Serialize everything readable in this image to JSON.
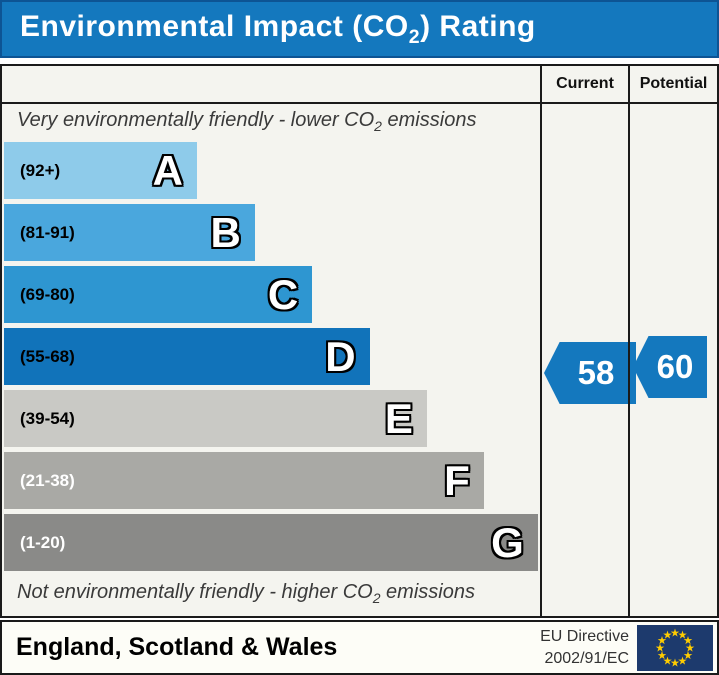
{
  "title": {
    "pre": "Environmental Impact (CO",
    "sub": "2",
    "post": ") Rating"
  },
  "columns": {
    "current": "Current",
    "potential": "Potential"
  },
  "top_label": {
    "pre": "Very environmentally friendly - lower CO",
    "sub": "2",
    "post": " emissions"
  },
  "bottom_label": {
    "pre": "Not environmentally friendly - higher CO",
    "sub": "2",
    "post": " emissions"
  },
  "chart_data": {
    "type": "bar",
    "title": "Environmental Impact (CO2) Rating",
    "bands": [
      {
        "letter": "A",
        "range": "(92+)",
        "min": 92,
        "max": 100,
        "width_pct": 36,
        "color": "#8ecbea",
        "text_color": "#000000"
      },
      {
        "letter": "B",
        "range": "(81-91)",
        "min": 81,
        "max": 91,
        "width_pct": 46.8,
        "color": "#4aa7dd",
        "text_color": "#000000"
      },
      {
        "letter": "C",
        "range": "(69-80)",
        "min": 69,
        "max": 80,
        "width_pct": 57.5,
        "color": "#2e96d1",
        "text_color": "#000000"
      },
      {
        "letter": "D",
        "range": "(55-68)",
        "min": 55,
        "max": 68,
        "width_pct": 68.2,
        "color": "#1173ba",
        "text_color": "#000000"
      },
      {
        "letter": "E",
        "range": "(39-54)",
        "min": 39,
        "max": 54,
        "width_pct": 78.9,
        "color": "#c9c9c5",
        "text_color": "#000000"
      },
      {
        "letter": "F",
        "range": "(21-38)",
        "min": 21,
        "max": 38,
        "width_pct": 89.5,
        "color": "#a9a9a5",
        "text_color": "#ffffff"
      },
      {
        "letter": "G",
        "range": "(1-20)",
        "min": 1,
        "max": 20,
        "width_pct": 99.6,
        "color": "#8a8a88",
        "text_color": "#ffffff"
      }
    ],
    "current": {
      "value": "58",
      "band": "D",
      "color": "#1478be"
    },
    "potential": {
      "value": "60",
      "band": "D",
      "color": "#1478be"
    }
  },
  "footer": {
    "region": "England, Scotland & Wales",
    "directive_line1": "EU Directive",
    "directive_line2": "2002/91/EC",
    "flag": "eu-flag-icon"
  }
}
